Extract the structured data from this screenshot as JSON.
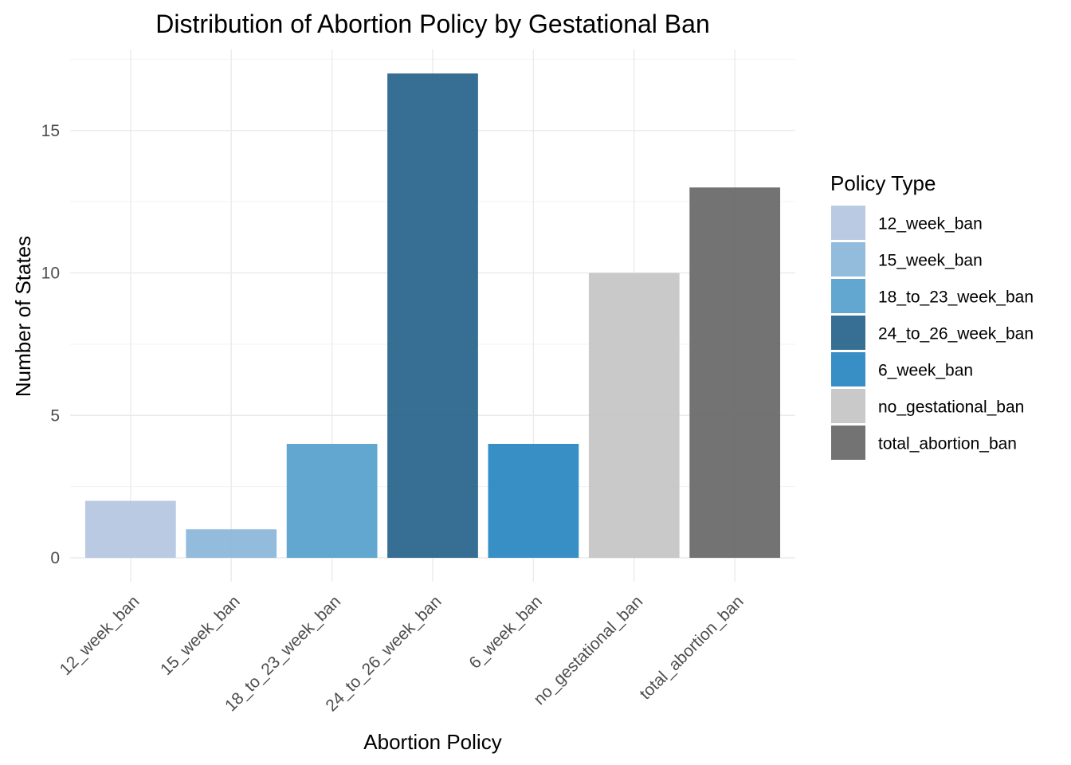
{
  "chart_data": {
    "type": "bar",
    "title": "Distribution of Abortion Policy by Gestational Ban",
    "xlabel": "Abortion Policy",
    "ylabel": "Number of States",
    "categories": [
      "12_week_ban",
      "15_week_ban",
      "18_to_23_week_ban",
      "24_to_26_week_ban",
      "6_week_ban",
      "no_gestational_ban",
      "total_abortion_ban"
    ],
    "values": [
      2,
      1,
      4,
      17,
      4,
      10,
      13
    ],
    "colors": [
      "#b3c6e0",
      "#89b5d9",
      "#55a0cc",
      "#26628a",
      "#2686c0",
      "#c4c4c4",
      "#676767"
    ],
    "ylim": [
      0,
      17.85
    ],
    "yticks": [
      0,
      5,
      10,
      15
    ],
    "grid": true,
    "legend": {
      "title": "Policy Type",
      "placement": "right",
      "entries": [
        "12_week_ban",
        "15_week_ban",
        "18_to_23_week_ban",
        "24_to_26_week_ban",
        "6_week_ban",
        "no_gestational_ban",
        "total_abortion_ban"
      ]
    }
  }
}
